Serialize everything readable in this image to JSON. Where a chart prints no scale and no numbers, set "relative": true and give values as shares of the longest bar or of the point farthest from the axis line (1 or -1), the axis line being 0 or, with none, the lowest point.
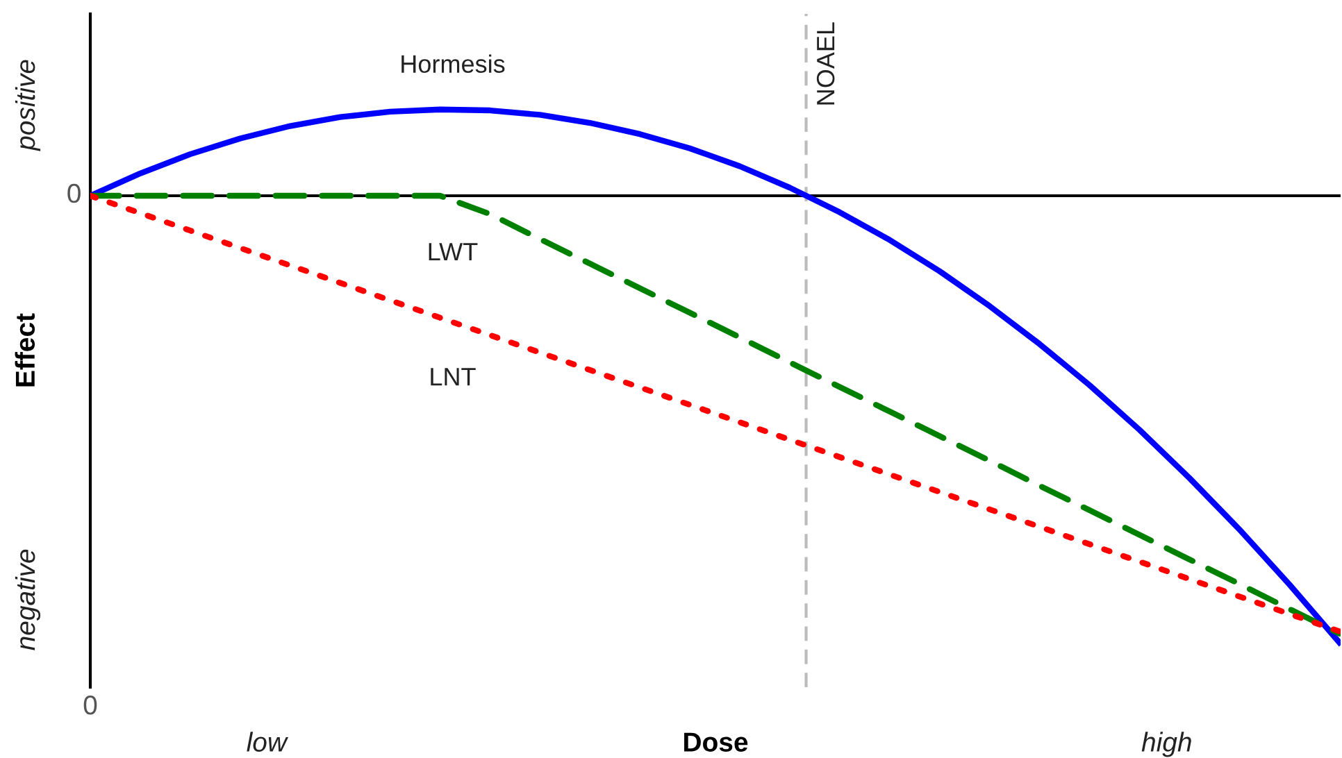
{
  "chart_data": {
    "type": "line",
    "relative": true,
    "xlabel": "Dose",
    "ylabel": "Effect",
    "categories": [
      null,
      null,
      null,
      null,
      null,
      null,
      null,
      null,
      null,
      null,
      null,
      null,
      null,
      null,
      null,
      null,
      null,
      null,
      null,
      null,
      null,
      null,
      null,
      null,
      null,
      null
    ],
    "series": [
      {
        "name": "Hormesis",
        "color": "#0000ff",
        "line_style": "solid",
        "values": [
          0,
          0.05,
          0.093,
          0.128,
          0.156,
          0.176,
          0.188,
          0.193,
          0.191,
          0.181,
          0.163,
          0.138,
          0.106,
          0.066,
          0.018,
          -0.037,
          -0.099,
          -0.169,
          -0.247,
          -0.332,
          -0.424,
          -0.524,
          -0.632,
          -0.747,
          -0.87,
          -1
        ]
      },
      {
        "name": "LWT",
        "color": "#008000",
        "line_style": "dashed",
        "values": [
          0,
          0,
          0,
          0,
          0,
          0,
          0,
          0,
          -0.041,
          -0.097,
          -0.152,
          -0.207,
          -0.262,
          -0.317,
          -0.373,
          -0.428,
          -0.483,
          -0.538,
          -0.593,
          -0.649,
          -0.704,
          -0.759,
          -0.814,
          -0.869,
          -0.925,
          -0.98
        ]
      },
      {
        "name": "LNT",
        "color": "#ff0000",
        "line_style": "dotted",
        "values": [
          0,
          -0.039,
          -0.078,
          -0.117,
          -0.156,
          -0.195,
          -0.234,
          -0.273,
          -0.312,
          -0.351,
          -0.39,
          -0.429,
          -0.468,
          -0.507,
          -0.546,
          -0.585,
          -0.624,
          -0.663,
          -0.702,
          -0.741,
          -0.78,
          -0.819,
          -0.858,
          -0.897,
          -0.936,
          -0.975
        ]
      }
    ],
    "annotations": [
      "positive",
      "0",
      "negative",
      "0",
      "low",
      "high",
      "NOAEL"
    ],
    "grid": false,
    "legend": false
  }
}
